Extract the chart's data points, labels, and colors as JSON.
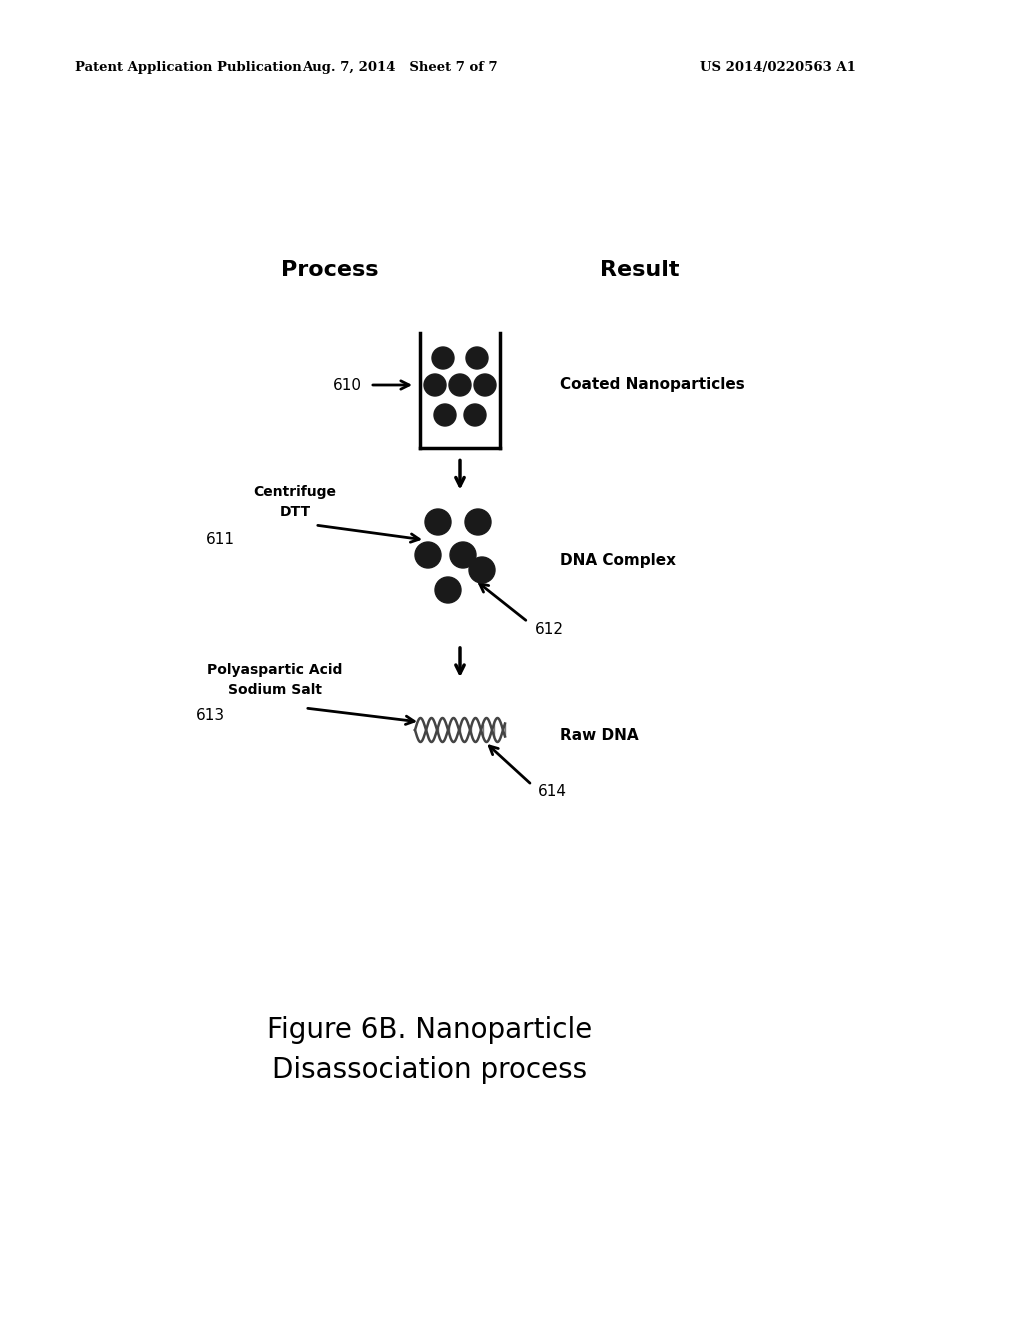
{
  "bg_color": "#ffffff",
  "header_left": "Patent Application Publication",
  "header_mid": "Aug. 7, 2014   Sheet 7 of 7",
  "header_right": "US 2014/0220563 A1",
  "process_label": "Process",
  "result_label": "Result",
  "caption_line1": "Figure 6B. Nanoparticle",
  "caption_line2": "Disassociation process",
  "step1_label": "610",
  "step1_result": "Coated Nanoparticles",
  "step2_label": "611",
  "step2_text1": "Centrifuge",
  "step2_text2": "DTT",
  "step2_result_label": "612",
  "step2_result": "DNA Complex",
  "step3_label": "613",
  "step3_text1": "Polyaspartic Acid",
  "step3_text2": "Sodium Salt",
  "step3_result_label": "614",
  "step3_result": "Raw DNA"
}
